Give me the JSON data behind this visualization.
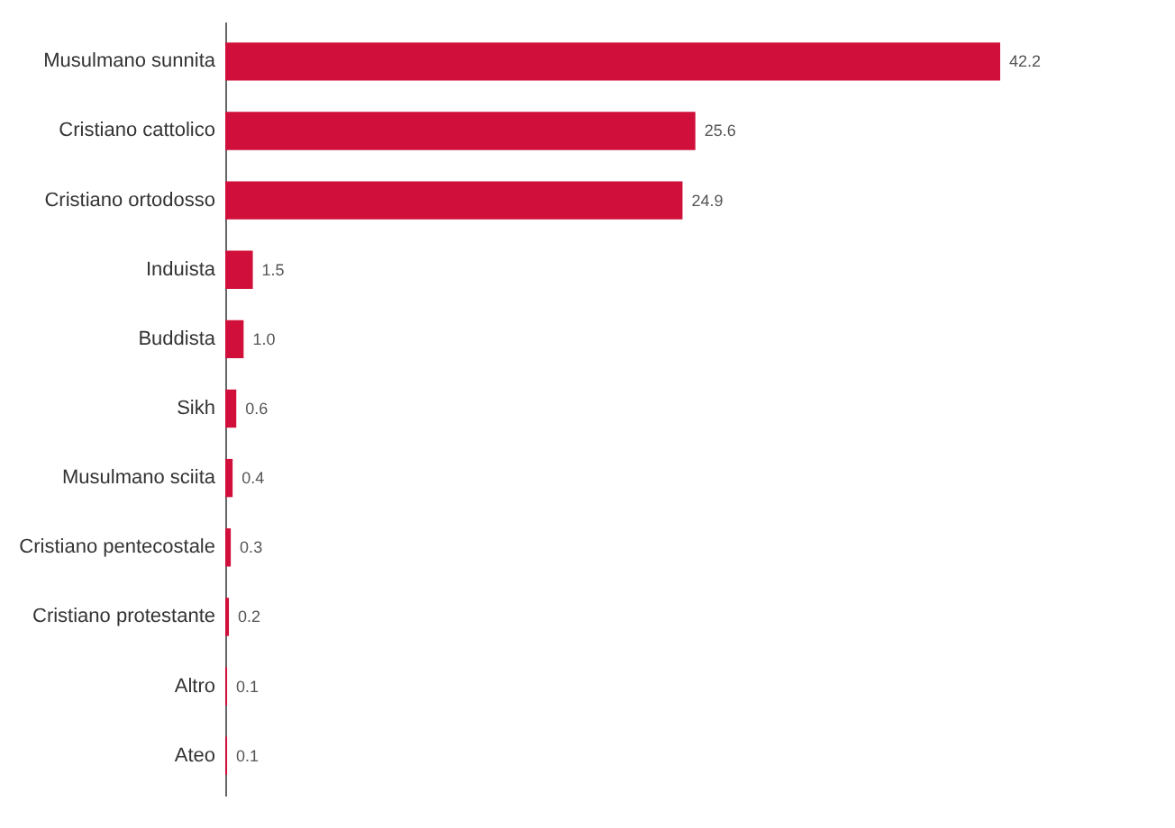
{
  "chart_data": {
    "type": "bar",
    "orientation": "horizontal",
    "categories": [
      "Musulmano sunnita",
      "Cristiano cattolico",
      "Cristiano ortodosso",
      "Induista",
      "Buddista",
      "Sikh",
      "Musulmano sciita",
      "Cristiano pentecostale",
      "Cristiano protestante",
      "Altro",
      "Ateo"
    ],
    "values": [
      42.2,
      25.6,
      24.9,
      1.5,
      1.0,
      0.6,
      0.4,
      0.3,
      0.2,
      0.1,
      0.1
    ],
    "value_labels": [
      "42.2",
      "25.6",
      "24.9",
      "1.5",
      "1.0",
      "0.6",
      "0.4",
      "0.3",
      "0.2",
      "0.1",
      "0.1"
    ],
    "color": "#d0103a"
  }
}
